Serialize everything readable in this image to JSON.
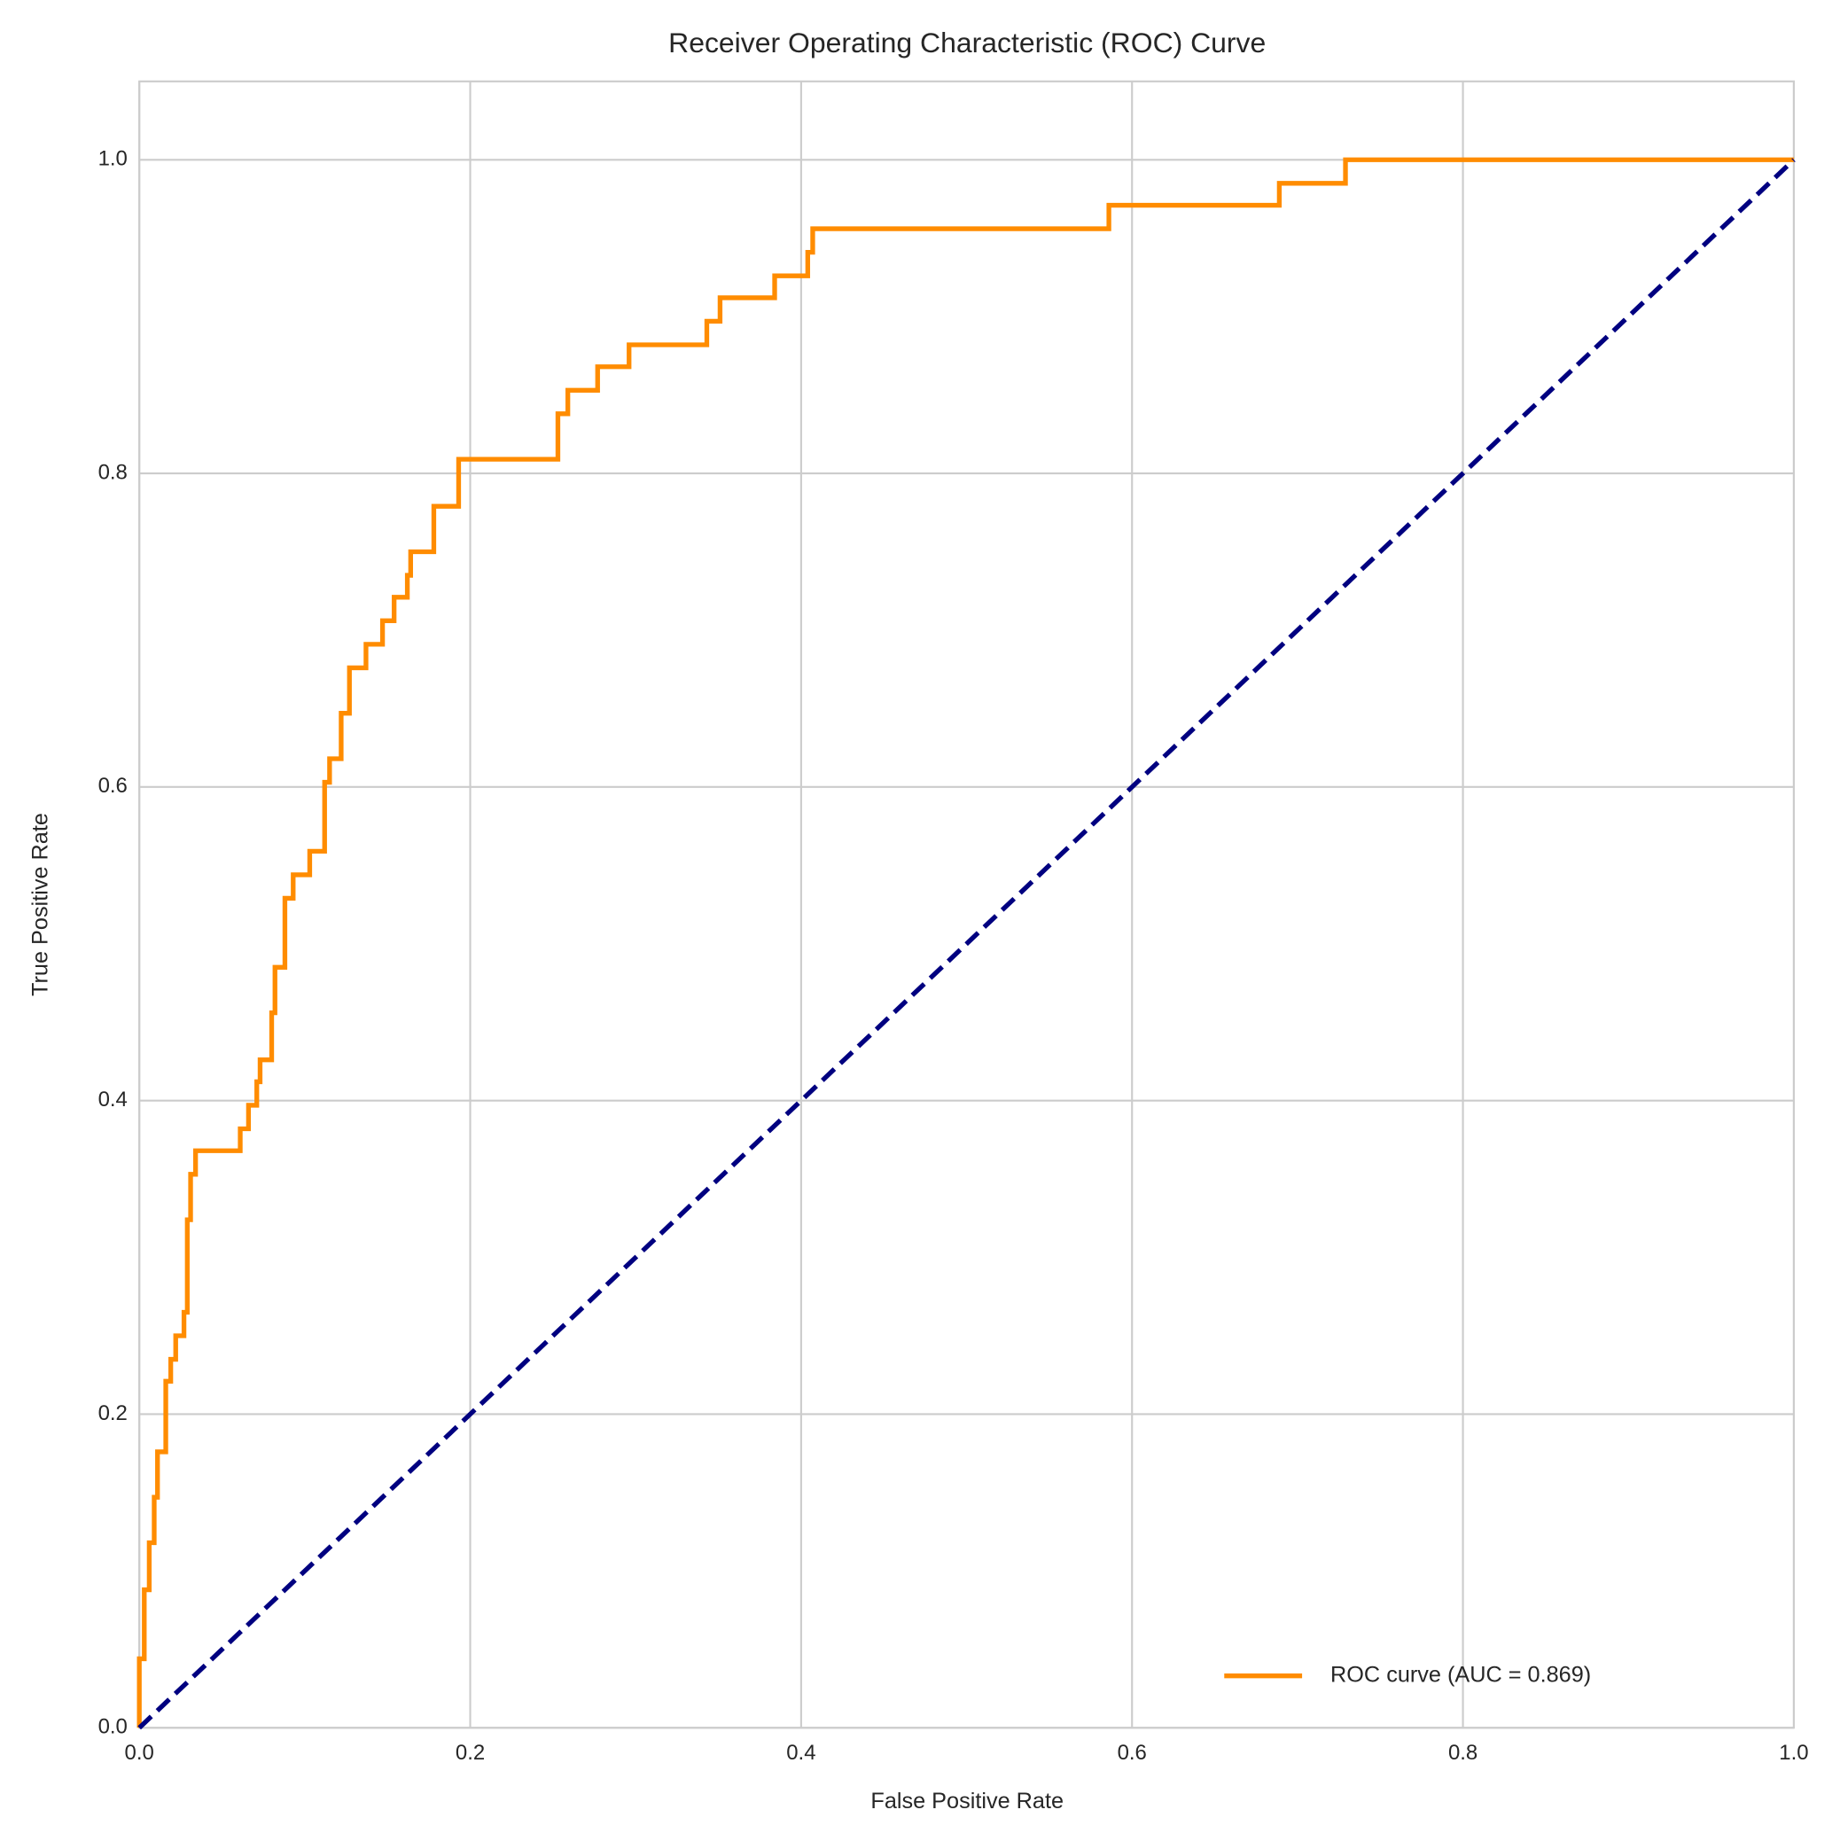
{
  "chart_data": {
    "type": "line",
    "title": "Receiver Operating Characteristic (ROC) Curve",
    "x_label": "False Positive Rate",
    "y_label": "True Positive Rate",
    "xlim": [
      0,
      1
    ],
    "ylim": [
      0,
      1.05
    ],
    "xticks": [
      {
        "value": 0,
        "label": "0.0"
      },
      0.2,
      0.4,
      0.6,
      0.8,
      {
        "value": 1,
        "label": "1.0"
      }
    ],
    "yticks": [
      {
        "value": 0,
        "label": "0.0"
      },
      0.2,
      0.4,
      0.6,
      0.8,
      {
        "value": 1,
        "label": "1.0"
      }
    ],
    "grid": true,
    "legend": "lower right",
    "series": [
      {
        "name": "ROC curve (AUC = 0.869)",
        "color": "#ff8c00",
        "line_style": "solid",
        "x": [
          0,
          0,
          0.003,
          0.003,
          0.006,
          0.006,
          0.009,
          0.009,
          0.011,
          0.011,
          0.016,
          0.016,
          0.019,
          0.019,
          0.022,
          0.022,
          0.027,
          0.027,
          0.029,
          0.029,
          0.031,
          0.031,
          0.034,
          0.034,
          0.061,
          0.061,
          0.066,
          0.066,
          0.071,
          0.071,
          0.073,
          0.073,
          0.08,
          0.08,
          0.082,
          0.082,
          0.088,
          0.088,
          0.093,
          0.093,
          0.103,
          0.103,
          0.112,
          0.112,
          0.115,
          0.115,
          0.122,
          0.122,
          0.127,
          0.127,
          0.137,
          0.137,
          0.147,
          0.147,
          0.154,
          0.154,
          0.162,
          0.162,
          0.164,
          0.164,
          0.178,
          0.178,
          0.193,
          0.193,
          0.253,
          0.253,
          0.259,
          0.259,
          0.277,
          0.277,
          0.296,
          0.296,
          0.343,
          0.343,
          0.351,
          0.351,
          0.384,
          0.384,
          0.404,
          0.404,
          0.407,
          0.407,
          0.586,
          0.586,
          0.689,
          0.689,
          0.729,
          0.729,
          1
        ],
        "values": [
          0,
          0.044,
          0.044,
          0.088,
          0.088,
          0.118,
          0.118,
          0.147,
          0.147,
          0.176,
          0.176,
          0.221,
          0.221,
          0.235,
          0.235,
          0.25,
          0.25,
          0.265,
          0.265,
          0.324,
          0.324,
          0.353,
          0.353,
          0.368,
          0.368,
          0.382,
          0.382,
          0.397,
          0.397,
          0.412,
          0.412,
          0.426,
          0.426,
          0.456,
          0.456,
          0.485,
          0.485,
          0.529,
          0.529,
          0.544,
          0.544,
          0.559,
          0.559,
          0.603,
          0.603,
          0.618,
          0.618,
          0.647,
          0.647,
          0.676,
          0.676,
          0.691,
          0.691,
          0.706,
          0.706,
          0.721,
          0.721,
          0.735,
          0.735,
          0.75,
          0.75,
          0.779,
          0.779,
          0.809,
          0.809,
          0.838,
          0.838,
          0.853,
          0.853,
          0.868,
          0.868,
          0.882,
          0.882,
          0.897,
          0.897,
          0.912,
          0.912,
          0.926,
          0.926,
          0.941,
          0.941,
          0.956,
          0.956,
          0.971,
          0.971,
          0.985,
          0.985,
          1,
          1
        ]
      },
      {
        "color": "#000080",
        "line_style": "dashed",
        "x": [
          0,
          1
        ],
        "values": [
          0,
          1
        ]
      }
    ]
  }
}
